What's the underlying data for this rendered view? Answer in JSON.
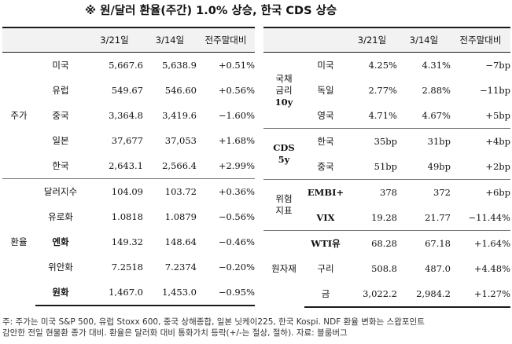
{
  "title": "※ 원/달러 환율(주간) 1.0% 상승, 한국 CDS 상승",
  "columns": [
    "",
    "",
    "3/21일",
    "3/14일",
    "전주말대비"
  ],
  "left": {
    "groups": [
      {
        "name": "주가",
        "rows": [
          {
            "label": "미국",
            "cur": "5,667.6",
            "prev": "5,638.9",
            "chg": "+0.51%"
          },
          {
            "label": "유럽",
            "cur": "549.67",
            "prev": "546.60",
            "chg": "+0.56%"
          },
          {
            "label": "중국",
            "cur": "3,364.8",
            "prev": "3,419.6",
            "chg": "−1.60%"
          },
          {
            "label": "일본",
            "cur": "37,677",
            "prev": "37,053",
            "chg": "+1.68%"
          },
          {
            "label": "한국",
            "cur": "2,643.1",
            "prev": "2,566.4",
            "chg": "+2.99%"
          }
        ]
      },
      {
        "name": "환율",
        "rows": [
          {
            "label": "달러지수",
            "cur": "104.09",
            "prev": "103.72",
            "chg": "+0.36%"
          },
          {
            "label": "유로화",
            "cur": "1.0818",
            "prev": "1.0879",
            "chg": "−0.56%"
          },
          {
            "label": "엔화",
            "cur": "149.32",
            "prev": "148.64",
            "chg": "−0.46%"
          },
          {
            "label": "위안화",
            "cur": "7.2518",
            "prev": "7.2374",
            "chg": "−0.20%"
          },
          {
            "label": "원화",
            "cur": "1,467.0",
            "prev": "1,453.0",
            "chg": "−0.95%"
          }
        ]
      }
    ]
  },
  "right": {
    "groups": [
      {
        "name_lines": [
          "국채",
          "금리",
          "10y"
        ],
        "rows": [
          {
            "label": "미국",
            "cur": "4.25%",
            "prev": "4.31%",
            "chg": "−7bp"
          },
          {
            "label": "독일",
            "cur": "2.77%",
            "prev": "2.88%",
            "chg": "−11bp"
          },
          {
            "label": "영국",
            "cur": "4.71%",
            "prev": "4.67%",
            "chg": "+5bp"
          }
        ]
      },
      {
        "name_lines": [
          "CDS",
          "5y"
        ],
        "rows": [
          {
            "label": "한국",
            "cur": "35bp",
            "prev": "31bp",
            "chg": "+4bp"
          },
          {
            "label": "중국",
            "cur": "51bp",
            "prev": "49bp",
            "chg": "+2bp"
          }
        ]
      },
      {
        "name_lines": [
          "위험",
          "지표"
        ],
        "rows": [
          {
            "label": "EMBI+",
            "cur": "378",
            "prev": "372",
            "chg": "+6bp"
          },
          {
            "label": "VIX",
            "cur": "19.28",
            "prev": "21.77",
            "chg": "−11.44%"
          }
        ]
      },
      {
        "name_lines": [
          "원자재"
        ],
        "rows": [
          {
            "label": "WTI유",
            "cur": "68.28",
            "prev": "67.18",
            "chg": "+1.64%"
          },
          {
            "label": "구리",
            "cur": "508.8",
            "prev": "487.0",
            "chg": "+4.48%"
          },
          {
            "label": "금",
            "cur": "3,022.2",
            "prev": "2,984.2",
            "chg": "+1.27%"
          }
        ]
      }
    ]
  },
  "footnote": {
    "line1": "주: 주가는 미국 S&P 500, 유럽 Stoxx 600, 중국 상해종합, 일본 닛케이225, 한국 Kospi. NDF 환율 변화는 스왑포인트",
    "line2": "감안한 전일 현물환 종가 대비. 환율은 달러화 대비 통화가치 등락(+/-는 절상, 절하). 자료: 블룸버그"
  },
  "colors": {
    "header_bg": "#f2f2f2",
    "rule": "#1a1a1a",
    "separator": "#7a7a7a"
  }
}
